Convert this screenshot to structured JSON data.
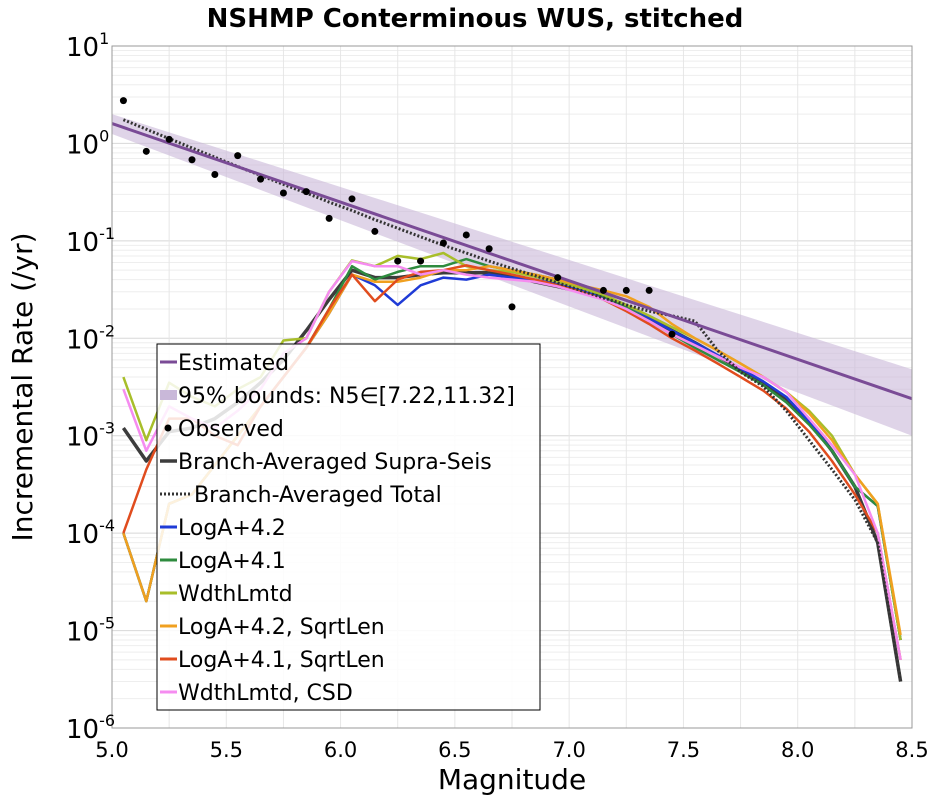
{
  "chart_data": {
    "type": "line",
    "title": "NSHMP Conterminous WUS, stitched",
    "xlabel": "Magnitude",
    "ylabel": "Incremental Rate (/yr)",
    "xlim": [
      5.0,
      8.5
    ],
    "ylim": [
      1e-06,
      10
    ],
    "yscale": "log",
    "grid": true,
    "legend_position": "lower-left",
    "x_ticks": [
      "5.0",
      "5.5",
      "6.0",
      "6.5",
      "7.0",
      "7.5",
      "8.0",
      "8.5"
    ],
    "y_ticks": [
      {
        "base": "10",
        "exp": "1",
        "value": 10
      },
      {
        "base": "10",
        "exp": "0",
        "value": 1
      },
      {
        "base": "10",
        "exp": "-1",
        "value": 0.1
      },
      {
        "base": "10",
        "exp": "-2",
        "value": 0.01
      },
      {
        "base": "10",
        "exp": "-3",
        "value": 0.001
      },
      {
        "base": "10",
        "exp": "-4",
        "value": 0.0001
      },
      {
        "base": "10",
        "exp": "-5",
        "value": 1e-05
      },
      {
        "base": "10",
        "exp": "-6",
        "value": 1e-06
      }
    ],
    "estimated": {
      "name": "Estimated",
      "color": "#7a4b96",
      "x": [
        5.0,
        8.5
      ],
      "y": [
        1.6,
        0.0024
      ]
    },
    "bounds": {
      "name": "95% bounds: N5∈[7.22,11.32]",
      "color": "#c9b8d9",
      "x": [
        5.0,
        8.5
      ],
      "upper": [
        2.0,
        0.0048
      ],
      "lower": [
        1.25,
        0.001
      ]
    },
    "observed": {
      "name": "Observed",
      "color": "#000000",
      "x": [
        5.05,
        5.15,
        5.25,
        5.35,
        5.45,
        5.55,
        5.65,
        5.75,
        5.85,
        5.95,
        6.05,
        6.15,
        6.25,
        6.35,
        6.45,
        6.55,
        6.65,
        6.75,
        6.95,
        7.15,
        7.25,
        7.35,
        7.45
      ],
      "y": [
        2.75,
        0.83,
        1.1,
        0.68,
        0.48,
        0.75,
        0.43,
        0.31,
        0.32,
        0.17,
        0.27,
        0.125,
        0.062,
        0.062,
        0.095,
        0.115,
        0.083,
        0.021,
        0.042,
        0.031,
        0.031,
        0.031,
        0.011
      ]
    },
    "x": [
      5.05,
      5.15,
      5.25,
      5.35,
      5.45,
      5.55,
      5.65,
      5.75,
      5.85,
      5.95,
      6.05,
      6.15,
      6.25,
      6.35,
      6.45,
      6.55,
      6.65,
      6.75,
      6.85,
      6.95,
      7.05,
      7.15,
      7.25,
      7.35,
      7.45,
      7.55,
      7.65,
      7.75,
      7.85,
      7.95,
      8.05,
      8.15,
      8.25,
      8.35,
      8.45
    ],
    "total": {
      "name": "Branch-Averaged Total",
      "color": "#333333",
      "y": [
        1.75,
        1.4,
        1.12,
        0.9,
        0.72,
        0.58,
        0.47,
        0.38,
        0.31,
        0.25,
        0.205,
        0.165,
        0.135,
        0.11,
        0.09,
        0.075,
        0.062,
        0.052,
        0.044,
        0.037,
        0.031,
        0.026,
        0.022,
        0.019,
        0.017,
        0.015,
        0.0075,
        0.0045,
        0.0032,
        0.0018,
        0.0009,
        0.00045,
        0.00022,
        8e-05,
        3e-06
      ]
    },
    "series": [
      {
        "name": "Branch-Averaged Supra-Seis",
        "color": "#3c3c3c",
        "width": 3.5,
        "y": [
          0.0012,
          0.00055,
          0.0011,
          0.0012,
          0.0015,
          0.0022,
          0.0035,
          0.006,
          0.012,
          0.025,
          0.05,
          0.042,
          0.042,
          0.045,
          0.047,
          0.047,
          0.047,
          0.043,
          0.038,
          0.034,
          0.03,
          0.026,
          0.021,
          0.016,
          0.012,
          0.009,
          0.0066,
          0.0048,
          0.0035,
          0.0024,
          0.0014,
          0.0007,
          0.0003,
          8e-05,
          3e-06
        ]
      },
      {
        "name": "LogA+4.2",
        "color": "#1f3bd6",
        "width": 2.5,
        "y": [
          0.0001,
          2e-05,
          0.0002,
          0.00025,
          0.0005,
          0.001,
          0.002,
          0.004,
          0.008,
          0.018,
          0.045,
          0.035,
          0.022,
          0.035,
          0.042,
          0.04,
          0.045,
          0.042,
          0.04,
          0.036,
          0.031,
          0.026,
          0.021,
          0.016,
          0.012,
          0.009,
          0.0067,
          0.0049,
          0.0036,
          0.0025,
          0.0014,
          0.0007,
          0.0003,
          0.00019,
          8e-06
        ]
      },
      {
        "name": "LogA+4.1",
        "color": "#2e8b3e",
        "width": 2.5,
        "y": [
          0.0001,
          2e-05,
          0.0002,
          0.00025,
          0.0005,
          0.001,
          0.002,
          0.004,
          0.008,
          0.02,
          0.055,
          0.04,
          0.048,
          0.055,
          0.055,
          0.065,
          0.055,
          0.05,
          0.045,
          0.04,
          0.034,
          0.027,
          0.021,
          0.015,
          0.011,
          0.008,
          0.006,
          0.0045,
          0.0033,
          0.0022,
          0.0013,
          0.0007,
          0.0003,
          0.00019,
          8e-06
        ]
      },
      {
        "name": "WdthLmtd",
        "color": "#a8be2a",
        "width": 2.5,
        "y": [
          0.004,
          0.0009,
          0.0035,
          0.0025,
          0.002,
          0.003,
          0.004,
          0.0095,
          0.01,
          0.03,
          0.063,
          0.055,
          0.07,
          0.065,
          0.075,
          0.055,
          0.05,
          0.048,
          0.043,
          0.038,
          0.033,
          0.028,
          0.022,
          0.017,
          0.013,
          0.01,
          0.0075,
          0.0055,
          0.004,
          0.0028,
          0.0018,
          0.001,
          0.0004,
          0.0002,
          8e-06
        ]
      },
      {
        "name": "LogA+4.2, SqrtLen",
        "color": "#f0a020",
        "width": 2.5,
        "y": [
          0.0001,
          2e-05,
          0.0002,
          0.00025,
          0.0005,
          0.001,
          0.002,
          0.004,
          0.008,
          0.018,
          0.045,
          0.038,
          0.038,
          0.042,
          0.05,
          0.05,
          0.055,
          0.05,
          0.045,
          0.04,
          0.035,
          0.031,
          0.027,
          0.021,
          0.014,
          0.01,
          0.0075,
          0.0055,
          0.004,
          0.0028,
          0.0017,
          0.0009,
          0.0004,
          0.0002,
          9e-06
        ]
      },
      {
        "name": "LogA+4.1, SqrtLen",
        "color": "#e04c1e",
        "width": 2.5,
        "y": [
          0.0001,
          0.00045,
          0.0015,
          0.0015,
          0.001,
          0.0008,
          0.002,
          0.004,
          0.008,
          0.02,
          0.045,
          0.024,
          0.04,
          0.048,
          0.05,
          0.056,
          0.05,
          0.045,
          0.04,
          0.035,
          0.03,
          0.025,
          0.019,
          0.014,
          0.01,
          0.0075,
          0.0055,
          0.004,
          0.0029,
          0.0019,
          0.0011,
          0.00055,
          0.00025,
          0.0001,
          5e-06
        ]
      },
      {
        "name": "WdthLmtd, CSD",
        "color": "#f58cf0",
        "width": 2.5,
        "y": [
          0.003,
          0.0007,
          0.002,
          0.0015,
          0.0012,
          0.0018,
          0.003,
          0.007,
          0.01,
          0.03,
          0.062,
          0.055,
          0.055,
          0.045,
          0.05,
          0.045,
          0.042,
          0.04,
          0.038,
          0.034,
          0.029,
          0.025,
          0.02,
          0.015,
          0.011,
          0.0085,
          0.0065,
          0.005,
          0.004,
          0.0028,
          0.0015,
          0.0008,
          0.0004,
          0.0001,
          5e-06
        ]
      }
    ]
  }
}
